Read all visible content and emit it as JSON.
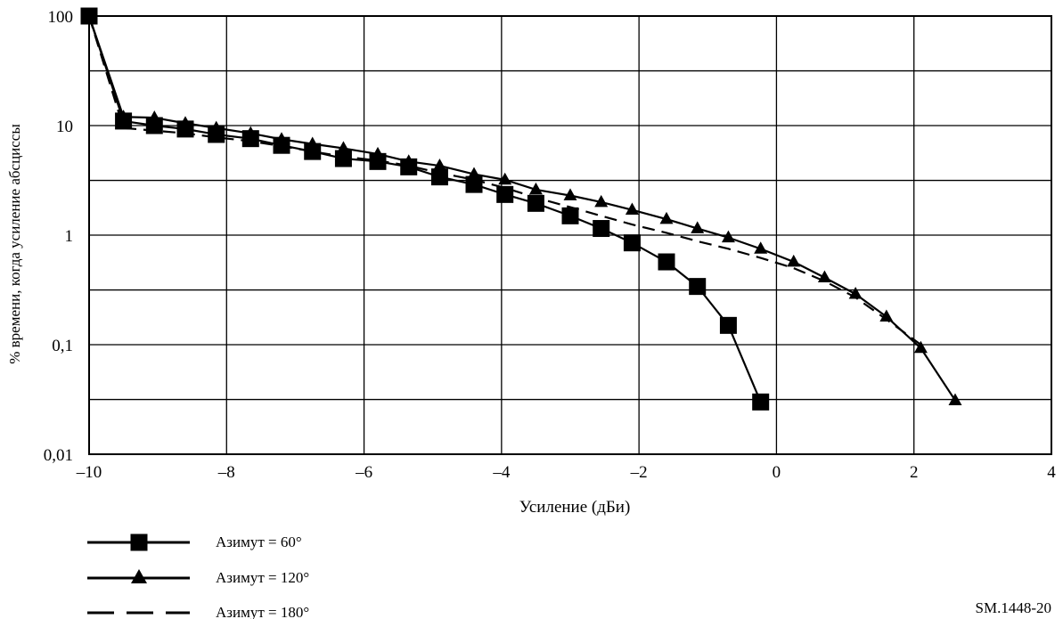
{
  "chart_data": {
    "type": "line",
    "xlabel": "Усиление (дБи)",
    "ylabel": "% времени, когда усиление  абсциссы",
    "xlim": [
      -10,
      4
    ],
    "ylim": [
      0.01,
      100
    ],
    "yscale": "log",
    "grid": true,
    "legend_position": "bottom-left",
    "x_ticks": [
      -10,
      -8,
      -6,
      -4,
      -2,
      0,
      2,
      4
    ],
    "x_tick_labels": [
      "–10",
      "–8",
      "–6",
      "–4",
      "–2",
      "0",
      "2",
      "4"
    ],
    "y_ticks": [
      0.01,
      0.1,
      1,
      10,
      100
    ],
    "y_tick_labels": [
      "0,01",
      "0,1",
      "1",
      "10",
      "100"
    ],
    "y_gridlines": [
      0.0316,
      0.1,
      0.316,
      1,
      3.16,
      10,
      31.6,
      100
    ],
    "series": [
      {
        "name": "Азимут = 60°",
        "marker": "square",
        "dash": "solid",
        "x": [
          -10,
          -9.5,
          -9.05,
          -8.6,
          -8.15,
          -7.65,
          -7.2,
          -6.75,
          -6.3,
          -5.8,
          -5.35,
          -4.9,
          -4.4,
          -3.95,
          -3.5,
          -3.0,
          -2.55,
          -2.1,
          -1.6,
          -1.15,
          -0.7,
          -0.23
        ],
        "y": [
          100,
          11,
          10,
          9.3,
          8.3,
          7.6,
          6.6,
          5.8,
          5.0,
          4.7,
          4.2,
          3.4,
          2.9,
          2.35,
          1.95,
          1.5,
          1.15,
          0.85,
          0.57,
          0.34,
          0.15,
          0.03
        ]
      },
      {
        "name": "Азимут = 120°",
        "marker": "triangle",
        "dash": "solid",
        "x": [
          -10,
          -9.5,
          -9.05,
          -8.6,
          -8.15,
          -7.65,
          -7.2,
          -6.75,
          -6.3,
          -5.8,
          -5.35,
          -4.9,
          -4.4,
          -3.95,
          -3.5,
          -3.0,
          -2.55,
          -2.1,
          -1.6,
          -1.15,
          -0.7,
          -0.23,
          0.25,
          0.7,
          1.15,
          1.6,
          2.1,
          2.6
        ],
        "y": [
          100,
          12,
          11.8,
          10.5,
          9.5,
          8.5,
          7.5,
          6.8,
          6.2,
          5.5,
          4.7,
          4.3,
          3.6,
          3.2,
          2.6,
          2.3,
          2.0,
          1.7,
          1.4,
          1.15,
          0.95,
          0.75,
          0.57,
          0.41,
          0.29,
          0.18,
          0.093,
          0.031
        ]
      },
      {
        "name": "Азимут = 180°",
        "marker": "none",
        "dash": "dashed",
        "x": [
          -10,
          -9.5,
          -9.05,
          -8.6,
          -8.15,
          -7.65,
          -7.2,
          -6.75,
          -6.3,
          -5.8,
          -5.35,
          -4.9,
          -4.4,
          -3.95,
          -3.5,
          -3.0,
          -2.55,
          -2.1,
          -1.6,
          -1.15,
          -0.7,
          -0.23,
          0.25,
          0.7,
          1.15,
          1.6,
          2.1
        ],
        "y": [
          100,
          9.5,
          9.0,
          8.5,
          7.8,
          7.2,
          6.5,
          5.8,
          5.2,
          4.8,
          4.3,
          3.7,
          3.2,
          2.7,
          2.2,
          1.8,
          1.5,
          1.25,
          1.05,
          0.88,
          0.75,
          0.62,
          0.5,
          0.38,
          0.27,
          0.17,
          0.1
        ]
      }
    ],
    "figure_id": "SM.1448-20"
  }
}
